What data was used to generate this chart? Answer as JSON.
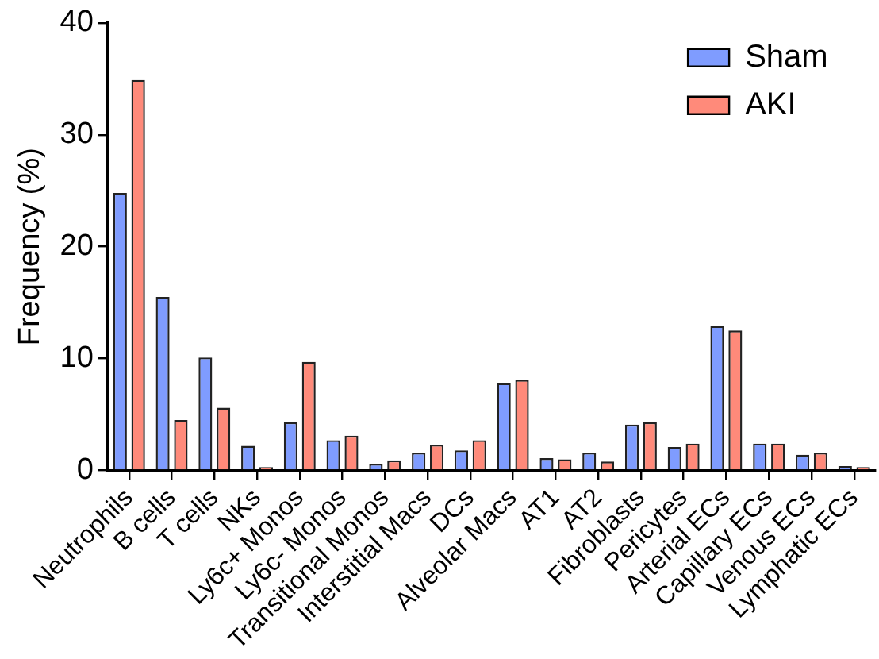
{
  "chart_data": {
    "type": "bar",
    "ylabel": "Frequency (%)",
    "categories": [
      "Neutrophils",
      "B cells",
      "T cells",
      "NKs",
      "Ly6c+ Monos",
      "Ly6c- Monos",
      "Transitional Monos",
      "Interstitial Macs",
      "DCs",
      "Alveolar Macs",
      "AT1",
      "AT2",
      "Fibroblasts",
      "Pericytes",
      "Arterial ECs",
      "Capillary ECs",
      "Venous ECs",
      "Lymphatic ECs"
    ],
    "series": [
      {
        "name": "Sham",
        "color": "#7f9cff",
        "values": [
          24.8,
          15.5,
          10.1,
          2.2,
          4.3,
          2.7,
          0.6,
          1.6,
          1.8,
          7.8,
          1.1,
          1.6,
          4.1,
          2.1,
          12.9,
          2.4,
          1.4,
          0.4
        ]
      },
      {
        "name": "AKI",
        "color": "#ff8a7a",
        "values": [
          34.9,
          4.5,
          5.6,
          0.3,
          9.7,
          3.1,
          0.9,
          2.3,
          2.7,
          8.1,
          1.0,
          0.8,
          4.3,
          2.4,
          12.5,
          2.4,
          1.6,
          0.3
        ]
      }
    ],
    "ylim": [
      0,
      40
    ],
    "yticks": [
      0,
      10,
      20,
      30,
      40
    ],
    "grid": false,
    "legend": "top right"
  }
}
